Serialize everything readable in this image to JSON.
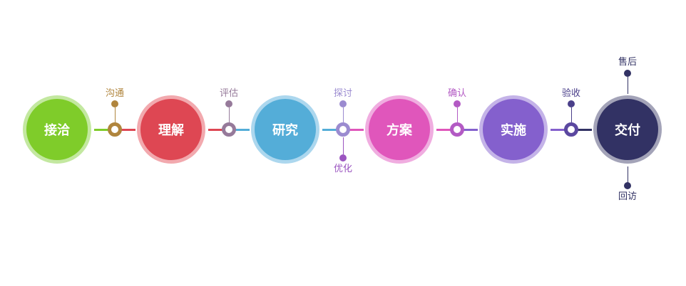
{
  "steps": [
    {
      "label": "接洽",
      "color": "#7fcc2a",
      "ring": "#c3e8a0"
    },
    {
      "label": "理解",
      "color": "#de4753",
      "ring": "#f2a9ae"
    },
    {
      "label": "研究",
      "color": "#54add8",
      "ring": "#acd7ee"
    },
    {
      "label": "方案",
      "color": "#e056bb",
      "ring": "#f0ade0"
    },
    {
      "label": "实施",
      "color": "#8460cd",
      "ring": "#c4b3e8"
    },
    {
      "label": "交付",
      "color": "#323264",
      "ring": "#a3a3b8"
    }
  ],
  "connectors": [
    {
      "color": "#b0853d",
      "top": {
        "label": "沟通",
        "color": "#b0853d"
      }
    },
    {
      "color": "#967a9a",
      "top": {
        "label": "评估",
        "color": "#967a9a"
      }
    },
    {
      "color": "#9b8bd0",
      "top": {
        "label": "探讨",
        "color": "#9b8bd0"
      },
      "bottom": {
        "label": "优化",
        "color": "#9b55c0"
      }
    },
    {
      "color": "#b35ac4",
      "top": {
        "label": "确认",
        "color": "#b35ac4"
      }
    },
    {
      "color": "#5b48a0",
      "top": {
        "label": "验收",
        "color": "#4a3f8a"
      }
    }
  ],
  "final": {
    "top": {
      "label": "售后",
      "color": "#323264"
    },
    "bottom": {
      "label": "回访",
      "color": "#323264"
    }
  }
}
